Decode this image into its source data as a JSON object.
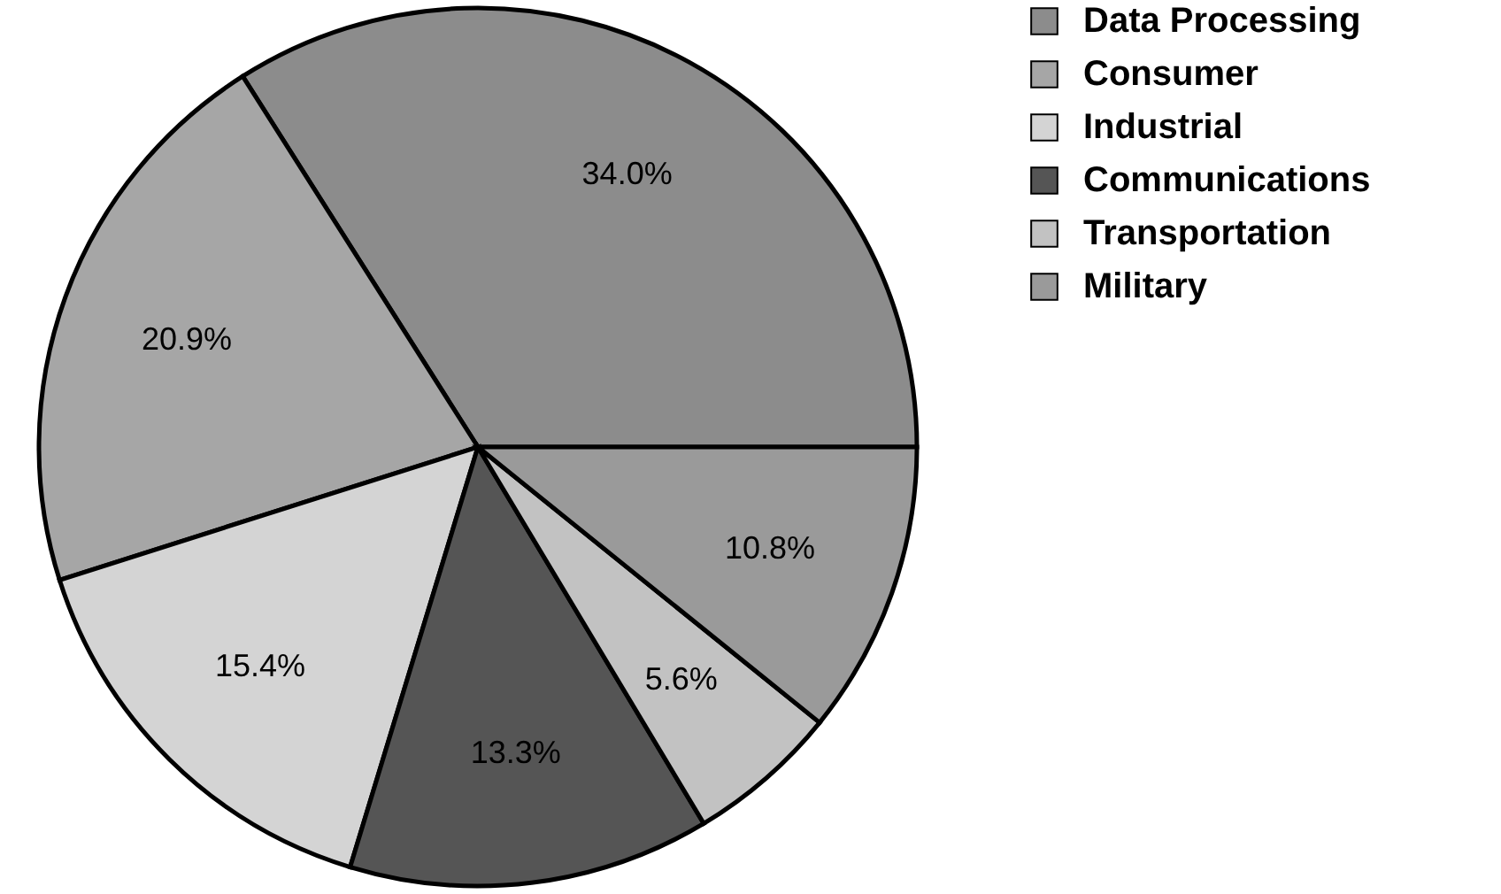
{
  "chart_data": {
    "type": "pie",
    "categories": [
      "Data Processing",
      "Consumer",
      "Industrial",
      "Communications",
      "Transportation",
      "Military"
    ],
    "values": [
      34.0,
      20.9,
      15.4,
      13.3,
      5.6,
      10.8
    ],
    "value_labels": [
      "34.0%",
      "20.9%",
      "15.4%",
      "13.3%",
      "5.6%",
      "10.8%"
    ],
    "colors": [
      "#8c8c8c",
      "#a6a6a6",
      "#d4d4d4",
      "#555555",
      "#c2c2c2",
      "#9a9a9a"
    ],
    "legend": "top right"
  }
}
